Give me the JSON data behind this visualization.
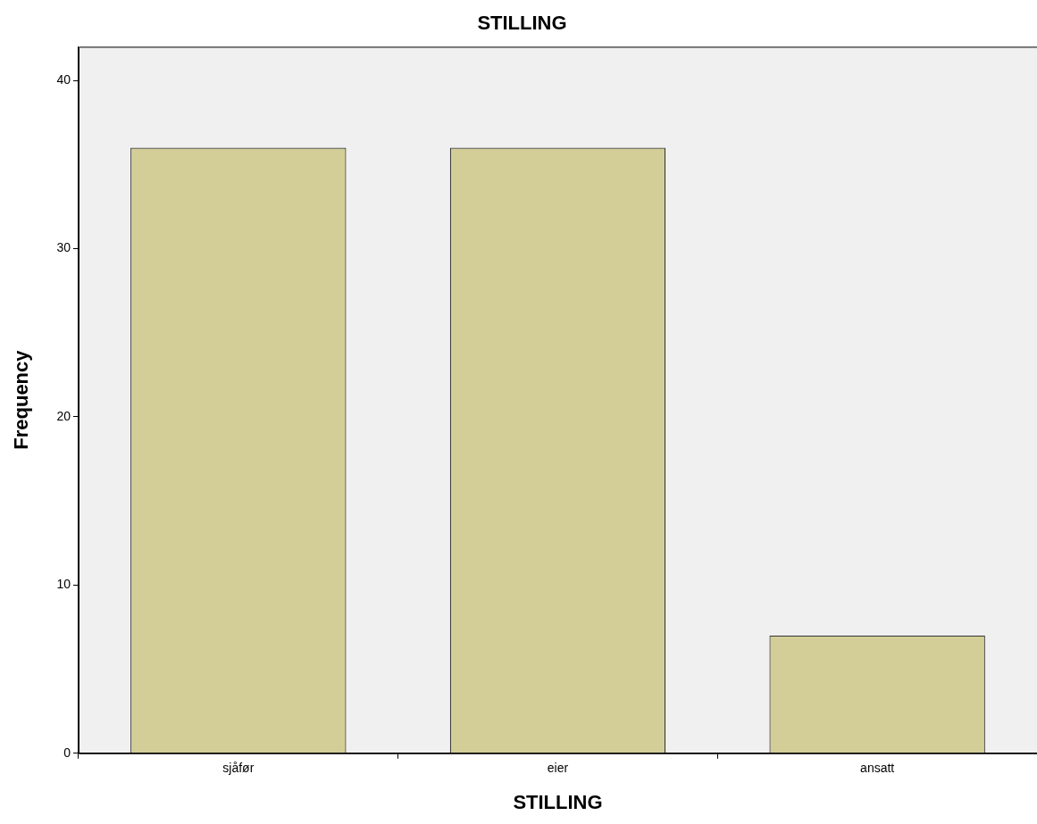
{
  "chart_data": {
    "type": "bar",
    "title": "STILLING",
    "xlabel": "STILLING",
    "ylabel": "Frequency",
    "categories": [
      "sjåfør",
      "eier",
      "ansatt"
    ],
    "values": [
      36,
      36,
      7
    ],
    "color": "#d3ce97",
    "ylim": [
      0,
      42
    ],
    "yticks": [
      0,
      10,
      20,
      30,
      40
    ],
    "grid": false
  }
}
